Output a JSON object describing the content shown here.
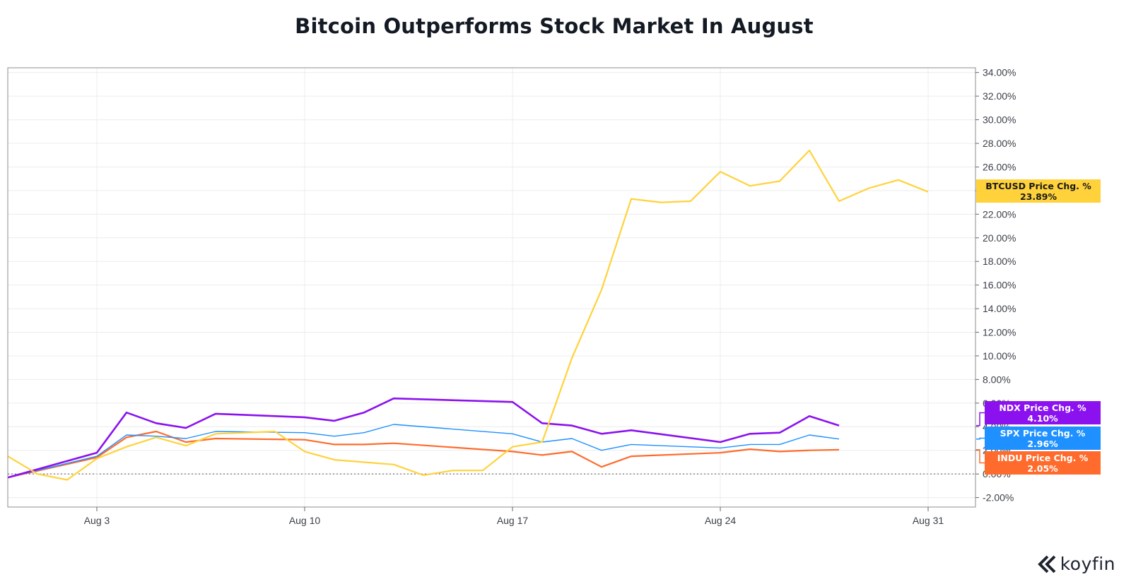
{
  "chart_data": {
    "type": "line",
    "title": "Bitcoin Outperforms Stock Market In August",
    "x": [
      "Jul 31",
      "Aug 1",
      "Aug 2",
      "Aug 3",
      "Aug 4",
      "Aug 5",
      "Aug 6",
      "Aug 7",
      "Aug 8",
      "Aug 9",
      "Aug 10",
      "Aug 11",
      "Aug 12",
      "Aug 13",
      "Aug 14",
      "Aug 15",
      "Aug 16",
      "Aug 17",
      "Aug 18",
      "Aug 19",
      "Aug 20",
      "Aug 21",
      "Aug 22",
      "Aug 23",
      "Aug 24",
      "Aug 25",
      "Aug 26",
      "Aug 27",
      "Aug 28",
      "Aug 29",
      "Aug 30",
      "Aug 31"
    ],
    "x_ticks": [
      "Aug 3",
      "Aug 10",
      "Aug 17",
      "Aug 24",
      "Aug 31"
    ],
    "y_ticks": [
      "-2.00%",
      "0.00%",
      "2.00%",
      "4.00%",
      "6.00%",
      "8.00%",
      "10.00%",
      "12.00%",
      "14.00%",
      "16.00%",
      "18.00%",
      "20.00%",
      "22.00%",
      "24.00%",
      "26.00%",
      "28.00%",
      "30.00%",
      "32.00%",
      "34.00%"
    ],
    "ylim": [
      -2.8,
      34.4
    ],
    "grid": true,
    "legend": "right-edge value labels",
    "series": [
      {
        "name": "INDU Price Chg. %",
        "value_label": "2.05%",
        "color": "#ff6b2c",
        "values": [
          -0.3,
          null,
          null,
          1.4,
          3.1,
          3.6,
          2.7,
          3.0,
          null,
          null,
          2.9,
          2.5,
          2.5,
          2.6,
          null,
          null,
          null,
          1.9,
          1.6,
          1.9,
          0.6,
          1.5,
          null,
          null,
          1.8,
          2.1,
          1.9,
          2.0,
          2.05,
          null,
          null,
          null
        ]
      },
      {
        "name": "SPX Price Chg. %",
        "value_label": "2.96%",
        "color": "#1e90ff",
        "values": [
          -0.3,
          null,
          null,
          1.5,
          3.3,
          3.2,
          3.0,
          3.6,
          null,
          null,
          3.5,
          3.2,
          3.5,
          4.2,
          null,
          null,
          null,
          3.4,
          2.7,
          3.0,
          2.0,
          2.5,
          null,
          null,
          2.2,
          2.5,
          2.5,
          3.3,
          2.96,
          null,
          null,
          null
        ]
      },
      {
        "name": "NDX Price Chg. %",
        "value_label": "4.10%",
        "color": "#8b12ee",
        "values": [
          -0.3,
          null,
          null,
          1.8,
          5.2,
          4.3,
          3.9,
          5.1,
          null,
          null,
          4.8,
          4.5,
          5.2,
          6.4,
          null,
          null,
          null,
          6.1,
          4.3,
          4.1,
          3.4,
          3.7,
          null,
          null,
          2.7,
          3.4,
          3.5,
          4.9,
          4.1,
          null,
          null,
          null
        ]
      },
      {
        "name": "BTCUSD Price Chg. %",
        "value_label": "23.89%",
        "color": "#ffd23b",
        "values": [
          1.5,
          0.0,
          -0.5,
          1.3,
          2.3,
          3.1,
          2.4,
          3.4,
          3.5,
          3.6,
          1.9,
          1.2,
          1.0,
          0.8,
          -0.1,
          0.3,
          0.3,
          2.3,
          2.7,
          9.8,
          15.6,
          23.3,
          23.0,
          23.1,
          25.6,
          24.4,
          24.8,
          27.4,
          23.1,
          24.2,
          24.9,
          23.89
        ]
      }
    ]
  },
  "brand": {
    "name": "koyfin"
  }
}
